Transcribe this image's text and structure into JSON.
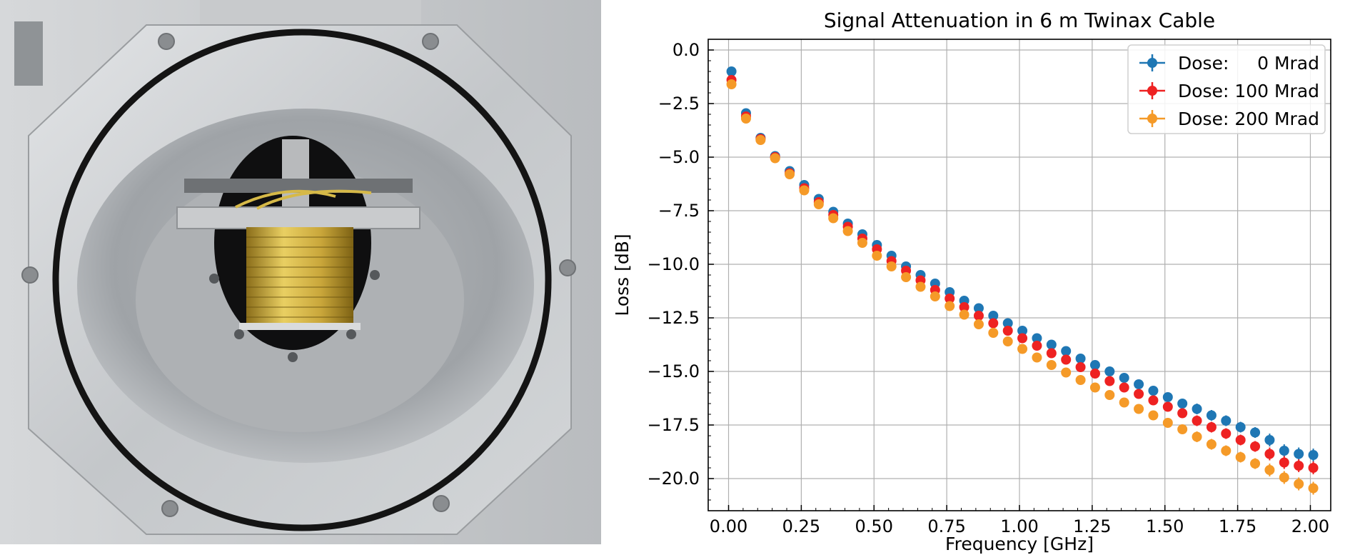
{
  "photo": {
    "subject": "Cylindrical irradiation chamber with coiled twinax cable sample",
    "colors": {
      "metal": "#c9ccd0",
      "ring": "#141414",
      "cable": "#c8a838",
      "background": "#e4e4e4"
    }
  },
  "chart_data": {
    "type": "scatter",
    "title": "Signal Attenuation in 6 m Twinax Cable",
    "xlabel": "Frequency [GHz]",
    "ylabel": "Loss [dB]",
    "xlim": [
      -0.07,
      2.07
    ],
    "ylim": [
      -21.5,
      0.5
    ],
    "xticks": [
      0.0,
      0.25,
      0.5,
      0.75,
      1.0,
      1.25,
      1.5,
      1.75,
      2.0
    ],
    "xtick_labels": [
      "0.00",
      "0.25",
      "0.50",
      "0.75",
      "1.00",
      "1.25",
      "1.50",
      "1.75",
      "2.00"
    ],
    "yticks": [
      0.0,
      -2.5,
      -5.0,
      -7.5,
      -10.0,
      -12.5,
      -15.0,
      -17.5,
      -20.0
    ],
    "ytick_labels": [
      "0.0",
      "−2.5",
      "−5.0",
      "−7.5",
      "−10.0",
      "−12.5",
      "−15.0",
      "−17.5",
      "−20.0"
    ],
    "grid": true,
    "legend_position": "top-right",
    "x": [
      0.01,
      0.06,
      0.11,
      0.16,
      0.21,
      0.26,
      0.31,
      0.36,
      0.41,
      0.46,
      0.51,
      0.56,
      0.61,
      0.66,
      0.71,
      0.76,
      0.81,
      0.86,
      0.91,
      0.96,
      1.01,
      1.06,
      1.11,
      1.16,
      1.21,
      1.26,
      1.31,
      1.36,
      1.41,
      1.46,
      1.51,
      1.56,
      1.61,
      1.66,
      1.71,
      1.76,
      1.81,
      1.86,
      1.91,
      1.96,
      2.01
    ],
    "series": [
      {
        "name": "Dose:     0 Mrad",
        "color": "#1f77b4",
        "values": [
          -1.0,
          -2.95,
          -4.1,
          -4.95,
          -5.65,
          -6.3,
          -6.95,
          -7.55,
          -8.1,
          -8.6,
          -9.1,
          -9.6,
          -10.1,
          -10.5,
          -10.9,
          -11.3,
          -11.7,
          -12.05,
          -12.4,
          -12.75,
          -13.1,
          -13.45,
          -13.75,
          -14.05,
          -14.4,
          -14.7,
          -15.0,
          -15.3,
          -15.6,
          -15.9,
          -16.2,
          -16.5,
          -16.75,
          -17.05,
          -17.3,
          -17.6,
          -17.85,
          -18.2,
          -18.7,
          -18.85,
          -18.9
        ],
        "errors": [
          0.1,
          0.1,
          0.1,
          0.1,
          0.1,
          0.1,
          0.1,
          0.1,
          0.1,
          0.1,
          0.1,
          0.1,
          0.15,
          0.15,
          0.15,
          0.15,
          0.15,
          0.15,
          0.15,
          0.15,
          0.15,
          0.15,
          0.15,
          0.15,
          0.15,
          0.2,
          0.2,
          0.2,
          0.2,
          0.2,
          0.2,
          0.2,
          0.25,
          0.25,
          0.25,
          0.25,
          0.25,
          0.3,
          0.3,
          0.3,
          0.3
        ]
      },
      {
        "name": "Dose: 100 Mrad",
        "color": "#ee2222",
        "values": [
          -1.4,
          -3.1,
          -4.15,
          -5.0,
          -5.75,
          -6.45,
          -7.1,
          -7.7,
          -8.25,
          -8.8,
          -9.3,
          -9.85,
          -10.3,
          -10.75,
          -11.2,
          -11.6,
          -12.0,
          -12.4,
          -12.75,
          -13.1,
          -13.45,
          -13.8,
          -14.15,
          -14.45,
          -14.8,
          -15.1,
          -15.45,
          -15.75,
          -16.05,
          -16.35,
          -16.65,
          -16.95,
          -17.3,
          -17.6,
          -17.9,
          -18.2,
          -18.5,
          -18.85,
          -19.25,
          -19.4,
          -19.5
        ],
        "errors": [
          0.1,
          0.1,
          0.1,
          0.1,
          0.1,
          0.1,
          0.1,
          0.1,
          0.1,
          0.1,
          0.1,
          0.1,
          0.15,
          0.15,
          0.15,
          0.15,
          0.15,
          0.15,
          0.15,
          0.15,
          0.15,
          0.15,
          0.15,
          0.15,
          0.15,
          0.2,
          0.2,
          0.2,
          0.2,
          0.2,
          0.2,
          0.2,
          0.25,
          0.25,
          0.25,
          0.25,
          0.25,
          0.3,
          0.3,
          0.3,
          0.3
        ]
      },
      {
        "name": "Dose: 200 Mrad",
        "color": "#f59a28",
        "values": [
          -1.6,
          -3.2,
          -4.2,
          -5.05,
          -5.8,
          -6.55,
          -7.2,
          -7.85,
          -8.45,
          -9.0,
          -9.6,
          -10.1,
          -10.6,
          -11.05,
          -11.5,
          -11.95,
          -12.35,
          -12.8,
          -13.2,
          -13.6,
          -13.95,
          -14.35,
          -14.7,
          -15.05,
          -15.4,
          -15.75,
          -16.1,
          -16.45,
          -16.75,
          -17.05,
          -17.4,
          -17.7,
          -18.05,
          -18.4,
          -18.7,
          -19.0,
          -19.3,
          -19.6,
          -19.95,
          -20.25,
          -20.45
        ],
        "errors": [
          0.1,
          0.1,
          0.1,
          0.1,
          0.1,
          0.1,
          0.1,
          0.1,
          0.1,
          0.1,
          0.1,
          0.1,
          0.15,
          0.15,
          0.15,
          0.15,
          0.15,
          0.15,
          0.15,
          0.15,
          0.15,
          0.15,
          0.15,
          0.15,
          0.15,
          0.2,
          0.2,
          0.2,
          0.2,
          0.2,
          0.2,
          0.2,
          0.25,
          0.25,
          0.25,
          0.25,
          0.25,
          0.3,
          0.3,
          0.3,
          0.3
        ]
      }
    ]
  }
}
